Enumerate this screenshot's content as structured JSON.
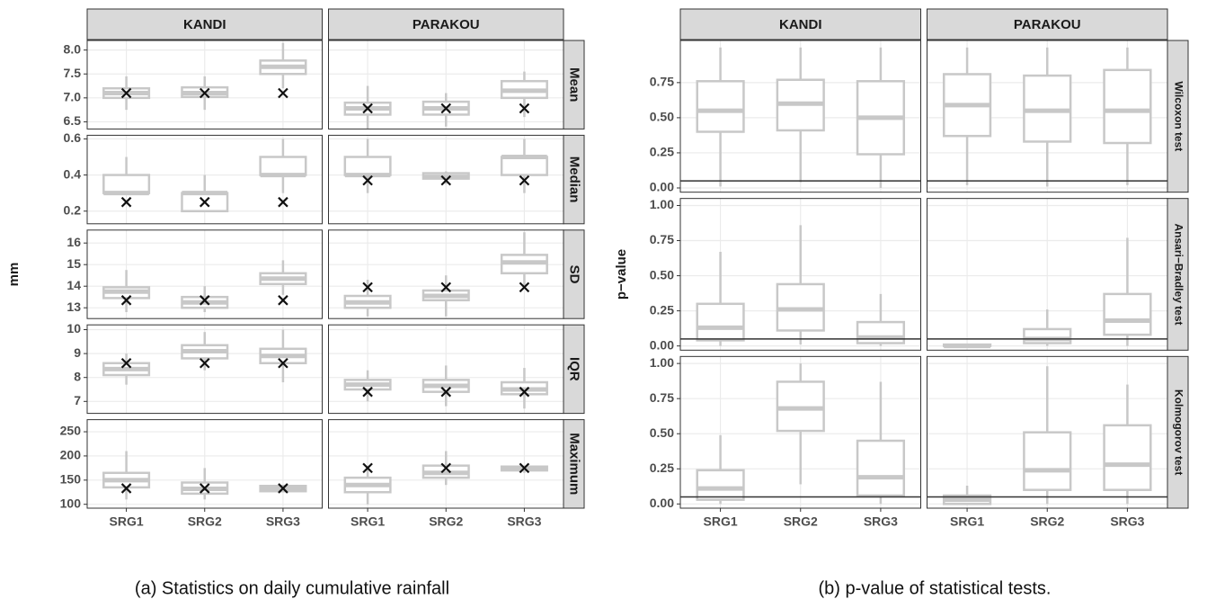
{
  "chart_data": [
    {
      "type": "box",
      "caption": "(a) Statistics on daily cumulative rainfall",
      "ylabel": "mm",
      "columns": [
        "KANDI",
        "PARAKOU"
      ],
      "categories": [
        "SRG1",
        "SRG2",
        "SRG3"
      ],
      "color": "#c8c8c8",
      "marker_color": "#111111",
      "grid": true,
      "rows": [
        {
          "name": "Mean",
          "ylim": [
            6.35,
            8.2
          ],
          "yticks": [
            6.5,
            {
              "value": 7,
              "label": "7.0"
            },
            7.5,
            {
              "value": 8,
              "label": "8.0"
            }
          ],
          "cells": [
            {
              "observed": 7.1,
              "boxes": [
                {
                  "min": 6.75,
                  "q1": 7.0,
                  "median": 7.1,
                  "q3": 7.2,
                  "max": 7.45
                },
                {
                  "min": 6.75,
                  "q1": 7.02,
                  "median": 7.1,
                  "q3": 7.22,
                  "max": 7.45
                },
                {
                  "min": 7.2,
                  "q1": 7.5,
                  "median": 7.65,
                  "q3": 7.78,
                  "max": 8.15
                }
              ]
            },
            {
              "observed": 6.78,
              "boxes": [
                {
                  "min": 6.35,
                  "q1": 6.65,
                  "median": 6.78,
                  "q3": 6.9,
                  "max": 7.25
                },
                {
                  "min": 6.4,
                  "q1": 6.65,
                  "median": 6.78,
                  "q3": 6.92,
                  "max": 7.1
                },
                {
                  "min": 6.6,
                  "q1": 7.0,
                  "median": 7.15,
                  "q3": 7.35,
                  "max": 7.55
                }
              ]
            }
          ]
        },
        {
          "name": "Median",
          "ylim": [
            0.13,
            0.62
          ],
          "yticks": [
            0.2,
            0.4,
            0.6
          ],
          "cells": [
            {
              "observed": 0.25,
              "boxes": [
                {
                  "min": 0.3,
                  "q1": 0.3,
                  "median": 0.3,
                  "q3": 0.4,
                  "max": 0.5
                },
                {
                  "min": 0.2,
                  "q1": 0.2,
                  "median": 0.3,
                  "q3": 0.3,
                  "max": 0.4
                },
                {
                  "min": 0.3,
                  "q1": 0.4,
                  "median": 0.4,
                  "q3": 0.5,
                  "max": 0.6
                }
              ]
            },
            {
              "observed": 0.37,
              "boxes": [
                {
                  "min": 0.3,
                  "q1": 0.4,
                  "median": 0.4,
                  "q3": 0.5,
                  "max": 0.6
                },
                {
                  "min": 0.35,
                  "q1": 0.38,
                  "median": 0.39,
                  "q3": 0.41,
                  "max": 0.42
                },
                {
                  "min": 0.3,
                  "q1": 0.4,
                  "median": 0.5,
                  "q3": 0.5,
                  "max": 0.6
                }
              ]
            }
          ]
        },
        {
          "name": "SD",
          "ylim": [
            12.5,
            16.6
          ],
          "yticks": [
            13,
            14,
            15,
            16
          ],
          "cells": [
            {
              "observed": 13.35,
              "boxes": [
                {
                  "min": 12.8,
                  "q1": 13.45,
                  "median": 13.75,
                  "q3": 13.95,
                  "max": 14.75
                },
                {
                  "min": 12.8,
                  "q1": 13.0,
                  "median": 13.25,
                  "q3": 13.5,
                  "max": 14.0
                },
                {
                  "min": 13.6,
                  "q1": 14.1,
                  "median": 14.35,
                  "q3": 14.6,
                  "max": 15.2
                }
              ]
            },
            {
              "observed": 13.95,
              "boxes": [
                {
                  "min": 12.6,
                  "q1": 13.0,
                  "median": 13.25,
                  "q3": 13.55,
                  "max": 14.3
                },
                {
                  "min": 12.6,
                  "q1": 13.35,
                  "median": 13.55,
                  "q3": 13.8,
                  "max": 14.5
                },
                {
                  "min": 14.0,
                  "q1": 14.6,
                  "median": 15.1,
                  "q3": 15.45,
                  "max": 16.5
                }
              ]
            }
          ]
        },
        {
          "name": "IQR",
          "ylim": [
            6.5,
            10.2
          ],
          "yticks": [
            7,
            8,
            9,
            10
          ],
          "cells": [
            {
              "observed": 8.6,
              "boxes": [
                {
                  "min": 7.7,
                  "q1": 8.1,
                  "median": 8.35,
                  "q3": 8.6,
                  "max": 9.0
                },
                {
                  "min": 8.3,
                  "q1": 8.8,
                  "median": 9.1,
                  "q3": 9.35,
                  "max": 9.9
                },
                {
                  "min": 7.8,
                  "q1": 8.6,
                  "median": 8.9,
                  "q3": 9.2,
                  "max": 10.0
                }
              ]
            },
            {
              "observed": 7.4,
              "boxes": [
                {
                  "min": 7.0,
                  "q1": 7.5,
                  "median": 7.7,
                  "q3": 7.9,
                  "max": 8.3
                },
                {
                  "min": 6.8,
                  "q1": 7.4,
                  "median": 7.65,
                  "q3": 7.9,
                  "max": 8.5
                },
                {
                  "min": 6.7,
                  "q1": 7.3,
                  "median": 7.5,
                  "q3": 7.8,
                  "max": 8.4
                }
              ]
            }
          ]
        },
        {
          "name": "Maximum",
          "ylim": [
            92,
            275
          ],
          "yticks": [
            100,
            150,
            200,
            250
          ],
          "cells": [
            {
              "observed": 133,
              "boxes": [
                {
                  "min": 110,
                  "q1": 135,
                  "median": 150,
                  "q3": 165,
                  "max": 210
                },
                {
                  "min": 110,
                  "q1": 122,
                  "median": 132,
                  "q3": 145,
                  "max": 175
                },
                {
                  "min": 125,
                  "q1": 127,
                  "median": 132,
                  "q3": 138,
                  "max": 140
                }
              ]
            },
            {
              "observed": 175,
              "boxes": [
                {
                  "min": 100,
                  "q1": 125,
                  "median": 140,
                  "q3": 155,
                  "max": 180
                },
                {
                  "min": 140,
                  "q1": 155,
                  "median": 165,
                  "q3": 180,
                  "max": 210
                },
                {
                  "min": 165,
                  "q1": 170,
                  "median": 174,
                  "q3": 178,
                  "max": 180
                }
              ]
            }
          ]
        }
      ]
    },
    {
      "type": "box",
      "caption": "(b) p-value of statistical tests.",
      "ylabel": "p−value",
      "columns": [
        "KANDI",
        "PARAKOU"
      ],
      "categories": [
        "SRG1",
        "SRG2",
        "SRG3"
      ],
      "color": "#c8c8c8",
      "hline": 0.05,
      "hline_color": "#333333",
      "grid": true,
      "rows": [
        {
          "name": "Wilcoxon test",
          "ylim": [
            -0.03,
            1.05
          ],
          "yticks": [
            {
              "value": 0,
              "label": "0.00"
            },
            0.25,
            {
              "value": 0.5,
              "label": "0.50"
            },
            0.75
          ],
          "cells": [
            {
              "boxes": [
                {
                  "min": 0.01,
                  "q1": 0.4,
                  "median": 0.55,
                  "q3": 0.76,
                  "max": 1.0
                },
                {
                  "min": 0.04,
                  "q1": 0.41,
                  "median": 0.6,
                  "q3": 0.77,
                  "max": 1.0
                },
                {
                  "min": 0.0,
                  "q1": 0.24,
                  "median": 0.5,
                  "q3": 0.76,
                  "max": 1.0
                }
              ]
            },
            {
              "boxes": [
                {
                  "min": 0.02,
                  "q1": 0.37,
                  "median": 0.59,
                  "q3": 0.81,
                  "max": 1.0
                },
                {
                  "min": 0.01,
                  "q1": 0.33,
                  "median": 0.55,
                  "q3": 0.8,
                  "max": 1.0
                },
                {
                  "min": 0.02,
                  "q1": 0.32,
                  "median": 0.55,
                  "q3": 0.84,
                  "max": 1.0
                }
              ]
            }
          ]
        },
        {
          "name": "Ansari−Bradley test",
          "ylim": [
            -0.03,
            1.05
          ],
          "yticks": [
            {
              "value": 0,
              "label": "0.00"
            },
            0.25,
            {
              "value": 0.5,
              "label": "0.50"
            },
            0.75,
            {
              "value": 1,
              "label": "1.00"
            }
          ],
          "cells": [
            {
              "boxes": [
                {
                  "min": 0.0,
                  "q1": 0.04,
                  "median": 0.13,
                  "q3": 0.3,
                  "max": 0.67
                },
                {
                  "min": 0.01,
                  "q1": 0.11,
                  "median": 0.26,
                  "q3": 0.44,
                  "max": 0.86
                },
                {
                  "min": 0.0,
                  "q1": 0.02,
                  "median": 0.06,
                  "q3": 0.17,
                  "max": 0.37
                }
              ]
            },
            {
              "boxes": [
                {
                  "min": 0.0,
                  "q1": 0.0,
                  "median": 0.0,
                  "q3": 0.01,
                  "max": 0.01
                },
                {
                  "min": 0.0,
                  "q1": 0.02,
                  "median": 0.05,
                  "q3": 0.12,
                  "max": 0.26
                },
                {
                  "min": 0.0,
                  "q1": 0.08,
                  "median": 0.18,
                  "q3": 0.37,
                  "max": 0.77
                }
              ]
            }
          ]
        },
        {
          "name": "Kolmogorov test",
          "ylim": [
            -0.03,
            1.05
          ],
          "yticks": [
            {
              "value": 0,
              "label": "0.00"
            },
            0.25,
            {
              "value": 0.5,
              "label": "0.50"
            },
            0.75,
            {
              "value": 1,
              "label": "1.00"
            }
          ],
          "cells": [
            {
              "boxes": [
                {
                  "min": 0.0,
                  "q1": 0.03,
                  "median": 0.11,
                  "q3": 0.24,
                  "max": 0.49
                },
                {
                  "min": 0.14,
                  "q1": 0.52,
                  "median": 0.68,
                  "q3": 0.87,
                  "max": 1.0
                },
                {
                  "min": 0.0,
                  "q1": 0.06,
                  "median": 0.19,
                  "q3": 0.45,
                  "max": 0.87
                }
              ]
            },
            {
              "boxes": [
                {
                  "min": 0.0,
                  "q1": 0.0,
                  "median": 0.03,
                  "q3": 0.06,
                  "max": 0.13
                },
                {
                  "min": 0.0,
                  "q1": 0.1,
                  "median": 0.24,
                  "q3": 0.51,
                  "max": 0.98
                },
                {
                  "min": 0.0,
                  "q1": 0.1,
                  "median": 0.28,
                  "q3": 0.56,
                  "max": 0.85
                }
              ]
            }
          ]
        }
      ]
    }
  ]
}
